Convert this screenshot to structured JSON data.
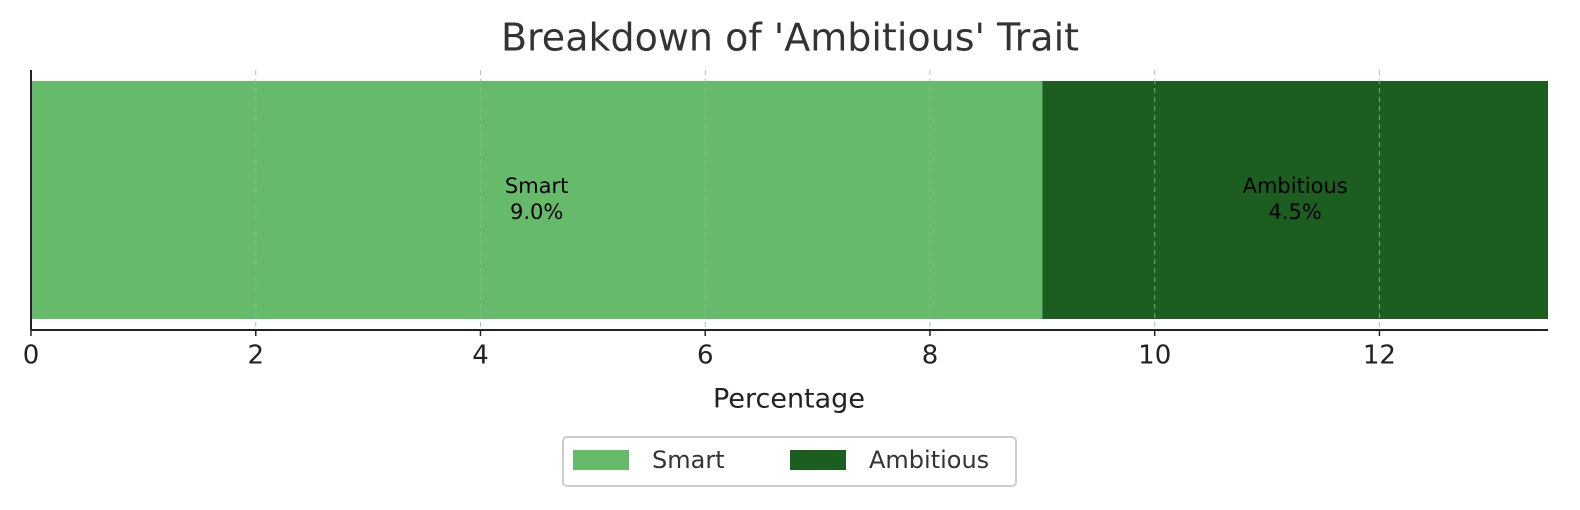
{
  "chart_data": {
    "type": "bar",
    "orientation": "horizontal",
    "stacked": true,
    "title": "Breakdown of 'Ambitious' Trait",
    "x_label": "Percentage",
    "series": [
      {
        "name": "Smart",
        "color": "#66bb6a",
        "values": [
          9.0
        ],
        "value_labels": [
          "9.0%"
        ]
      },
      {
        "name": "Ambitious",
        "color": "#1b5e20",
        "values": [
          4.5
        ],
        "value_labels": [
          "4.5%"
        ]
      }
    ],
    "xlim": [
      0,
      13.5
    ],
    "xticks": [
      0,
      2,
      4,
      6,
      8,
      10,
      12
    ],
    "grid": true,
    "legend": "bottom"
  }
}
